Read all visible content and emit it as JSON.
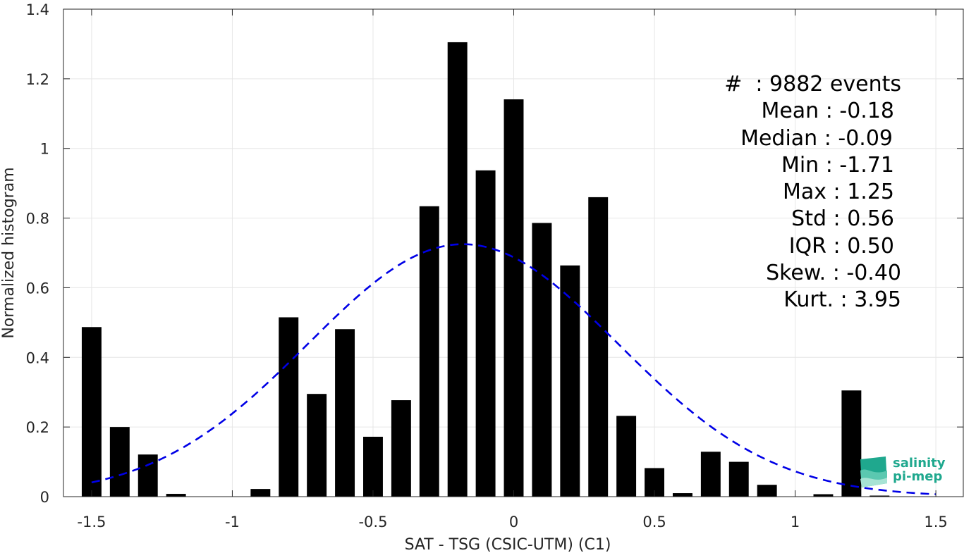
{
  "chart_data": {
    "type": "bar",
    "xlabel": "SAT - TSG (CSIC-UTM) (C1)",
    "ylabel": "Normalized histogram",
    "xlim": [
      -1.6,
      1.6
    ],
    "ylim": [
      0,
      1.4
    ],
    "xticks": [
      -1.5,
      -1,
      -0.5,
      0,
      0.5,
      1,
      1.5
    ],
    "xtick_labels": [
      "-1.5",
      "-1",
      "-0.5",
      "0",
      "0.5",
      "1",
      "1.5"
    ],
    "yticks": [
      0,
      0.2,
      0.4,
      0.6,
      0.8,
      1.0,
      1.2,
      1.4
    ],
    "ytick_labels": [
      "0",
      "0.2",
      "0.4",
      "0.6",
      "0.8",
      "1",
      "1.2",
      "1.4"
    ],
    "grid": true,
    "bar_width": 0.07,
    "bar_color": "#000000",
    "x": [
      -1.5,
      -1.4,
      -1.3,
      -1.2,
      -1.1,
      -1.0,
      -0.9,
      -0.8,
      -0.7,
      -0.6,
      -0.5,
      -0.4,
      -0.3,
      -0.2,
      -0.1,
      0.0,
      0.1,
      0.2,
      0.3,
      0.4,
      0.5,
      0.6,
      0.7,
      0.8,
      0.9,
      1.0,
      1.1,
      1.2,
      1.3
    ],
    "values": [
      0.487,
      0.2,
      0.121,
      0.008,
      0,
      0,
      0.022,
      0.515,
      0.295,
      0.481,
      0.172,
      0.277,
      0.834,
      1.305,
      0.937,
      1.141,
      0.786,
      0.664,
      0.86,
      0.232,
      0.082,
      0.01,
      0.129,
      0.1,
      0.034,
      0,
      0.007,
      0.305,
      0.003
    ],
    "fit_curve": {
      "style": "dashed",
      "color": "#0000e6",
      "mean": -0.18,
      "std": 0.55,
      "x_range": [
        -1.5,
        1.5
      ],
      "peak": 0.725
    }
  },
  "stats": [
    "#  : 9882 events",
    "Mean : -0.18",
    "Median : -0.09",
    "Min : -1.71",
    "Max : 1.25",
    "Std : 0.56",
    "IQR : 0.50",
    "Skew. : -0.40",
    "Kurt. : 3.95"
  ],
  "logo": {
    "line1": "salinity",
    "line2": "pi-mep",
    "color": "#1fa88e"
  }
}
